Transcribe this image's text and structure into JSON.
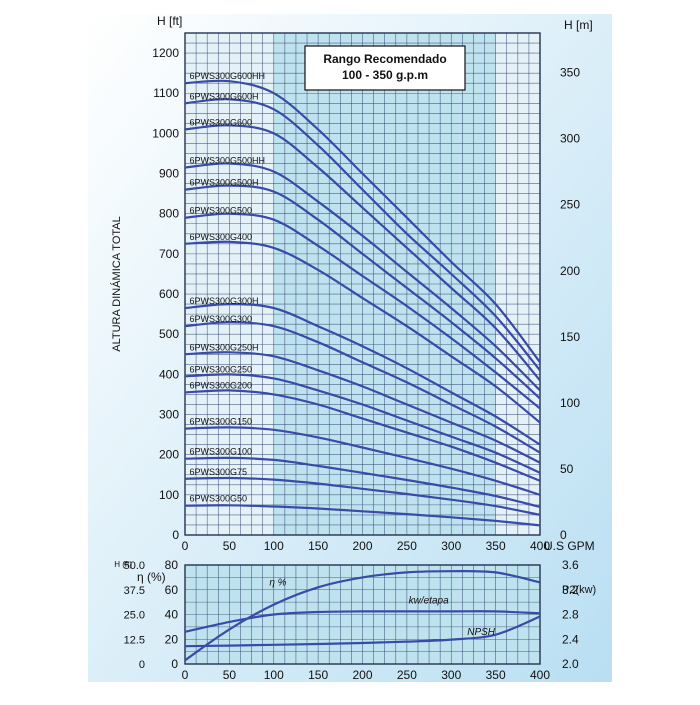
{
  "colors": {
    "curve": "#3a4aa8",
    "grid": "#2e3f6e",
    "frame": "#22324f",
    "recommended_fill": "#bfe3ee",
    "outside_fill": "#e4f2f8",
    "background_wave": "#7fc4e8"
  },
  "chart_data": [
    {
      "type": "line",
      "title": "",
      "xlabel": "U.S GPM",
      "ylabel": "ALTURA DINÁMICA TOTAL",
      "y_unit_left": "H [ft]",
      "y_unit_right": "H [m]",
      "xlim": [
        0,
        400
      ],
      "ylim": [
        0,
        1250
      ],
      "ylim_right": [
        0,
        380
      ],
      "x_ticks": [
        0,
        50,
        100,
        150,
        200,
        250,
        300,
        350,
        400
      ],
      "y_ticks": [
        0,
        100,
        200,
        300,
        400,
        500,
        600,
        700,
        800,
        900,
        1000,
        1100,
        1200
      ],
      "y_ticks_right": [
        0,
        50,
        100,
        150,
        200,
        250,
        300,
        350
      ],
      "grid": true,
      "annotation": {
        "title": "Rango Recomendado",
        "subtitle": "100 - 350 g.p.m",
        "range": [
          100,
          350
        ]
      },
      "x": [
        0,
        50,
        100,
        150,
        200,
        250,
        300,
        350,
        400
      ],
      "series": [
        {
          "name": "6PWS300G600HH",
          "values": [
            1125,
            1130,
            1100,
            1010,
            900,
            790,
            680,
            575,
            430
          ]
        },
        {
          "name": "6PWS300G600H",
          "values": [
            1075,
            1085,
            1060,
            970,
            860,
            750,
            650,
            545,
            410
          ]
        },
        {
          "name": "6PWS300G600",
          "values": [
            1010,
            1020,
            1000,
            915,
            815,
            715,
            615,
            515,
            385
          ]
        },
        {
          "name": "6PWS300G500HH",
          "values": [
            915,
            925,
            905,
            830,
            745,
            655,
            565,
            470,
            360
          ]
        },
        {
          "name": "6PWS300G500H",
          "values": [
            860,
            870,
            855,
            785,
            700,
            615,
            530,
            440,
            340
          ]
        },
        {
          "name": "6PWS300G500",
          "values": [
            790,
            800,
            785,
            720,
            645,
            570,
            490,
            405,
            315
          ]
        },
        {
          "name": "6PWS300G400",
          "values": [
            725,
            730,
            715,
            660,
            590,
            520,
            445,
            370,
            280
          ]
        },
        {
          "name": "6PWS300G300H",
          "values": [
            565,
            575,
            565,
            520,
            470,
            415,
            355,
            295,
            225
          ]
        },
        {
          "name": "6PWS300G300",
          "values": [
            520,
            530,
            520,
            480,
            430,
            380,
            325,
            270,
            205
          ]
        },
        {
          "name": "6PWS300G250H",
          "values": [
            450,
            455,
            445,
            410,
            370,
            325,
            280,
            235,
            180
          ]
        },
        {
          "name": "6PWS300G250",
          "values": [
            395,
            400,
            390,
            360,
            325,
            285,
            245,
            205,
            155
          ]
        },
        {
          "name": "6PWS300G200",
          "values": [
            355,
            360,
            350,
            325,
            290,
            255,
            220,
            180,
            135
          ]
        },
        {
          "name": "6PWS300G150",
          "values": [
            265,
            268,
            262,
            243,
            218,
            192,
            165,
            135,
            100
          ]
        },
        {
          "name": "6PWS300G100",
          "values": [
            190,
            192,
            187,
            172,
            155,
            137,
            118,
            97,
            70
          ]
        },
        {
          "name": "6PWS300G75",
          "values": [
            140,
            142,
            138,
            128,
            115,
            102,
            88,
            72,
            50
          ]
        },
        {
          "name": "6PWS300G50",
          "values": [
            73,
            74,
            71,
            66,
            59,
            52,
            44,
            35,
            24
          ]
        }
      ]
    },
    {
      "type": "line",
      "title": "",
      "xlabel": "",
      "xlim": [
        0,
        400
      ],
      "x_ticks": [
        0,
        50,
        100,
        150,
        200,
        250,
        300,
        350,
        400
      ],
      "y_left_outer": {
        "label": "H (ft)",
        "range": [
          0,
          50
        ],
        "ticks": [
          "0",
          "12.5",
          "25.0",
          "37.5",
          "50.0"
        ]
      },
      "y_left_inner": {
        "label": "η (%)",
        "range": [
          0,
          80
        ],
        "ticks": [
          "0",
          "20",
          "40",
          "60",
          "80"
        ]
      },
      "y_right": {
        "label": "P2(kw)",
        "range": [
          2.0,
          3.6
        ],
        "ticks": [
          "2.0",
          "2.4",
          "2.8",
          "3.2",
          "3.6"
        ]
      },
      "grid": true,
      "x": [
        0,
        50,
        100,
        150,
        200,
        250,
        300,
        350,
        400
      ],
      "series": [
        {
          "name": "η %",
          "axis": "eta",
          "values": [
            3,
            28,
            48,
            62,
            70,
            74,
            75,
            74,
            66
          ]
        },
        {
          "name": "kw/etapa",
          "axis": "kw",
          "values": [
            2.52,
            2.68,
            2.8,
            2.84,
            2.85,
            2.85,
            2.85,
            2.85,
            2.82
          ]
        },
        {
          "name": "NPSH",
          "axis": "ft",
          "values": [
            9.0,
            9.3,
            9.7,
            10.1,
            10.6,
            11.3,
            12.3,
            14.8,
            24.0
          ]
        }
      ]
    }
  ]
}
